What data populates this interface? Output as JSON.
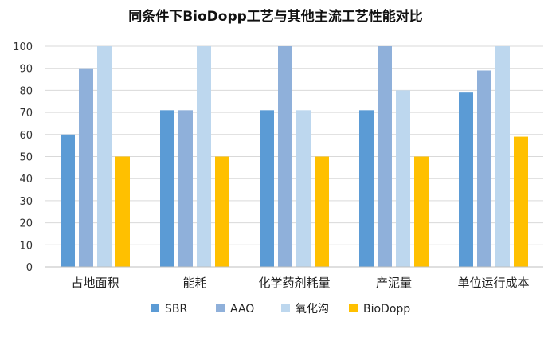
{
  "chart_data": {
    "type": "bar",
    "title": "同条件下BioDopp工艺与其他主流工艺性能对比",
    "xlabel": "",
    "ylabel": "",
    "ylim": [
      0,
      100
    ],
    "yticks": [
      0,
      10,
      20,
      30,
      40,
      50,
      60,
      70,
      80,
      90,
      100
    ],
    "grid": true,
    "legend_position": "bottom",
    "categories": [
      "占地面积",
      "能耗",
      "化学药剂耗量",
      "产泥量",
      "单位运行成本"
    ],
    "series": [
      {
        "name": "SBR",
        "color": "#5B9BD5",
        "values": [
          60,
          71,
          71,
          71,
          79
        ]
      },
      {
        "name": "AAO",
        "color": "#8FB0DA",
        "values": [
          90,
          71,
          100,
          100,
          89
        ]
      },
      {
        "name": "氧化沟",
        "color": "#BDD7EE",
        "values": [
          100,
          100,
          71,
          80,
          100
        ]
      },
      {
        "name": "BioDopp",
        "color": "#FFC000",
        "values": [
          50,
          50,
          50,
          50,
          59
        ]
      }
    ]
  }
}
